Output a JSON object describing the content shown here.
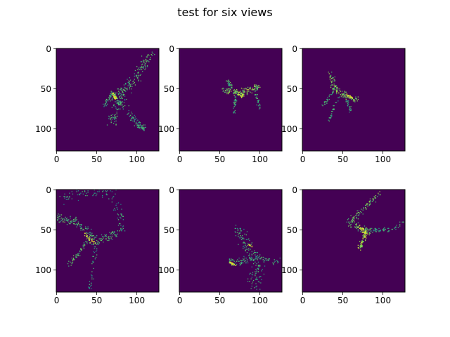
{
  "figure": {
    "title": "test for six views",
    "colormap": {
      "low": "#440154",
      "mid1": "#21918c",
      "mid2": "#5ec962",
      "high": "#fde725"
    }
  },
  "chart_data": [
    {
      "type": "heatmap",
      "view": 1,
      "xlim": [
        0,
        127
      ],
      "ylim": [
        127,
        0
      ],
      "xticks": [
        0,
        50,
        100
      ],
      "yticks": [
        0,
        50,
        100
      ],
      "strokes": [
        {
          "pts": [
            [
              68,
              92
            ],
            [
              80,
              55
            ],
            [
              100,
              35
            ],
            [
              118,
              5
            ]
          ],
          "count": 220,
          "spread": 9,
          "level": 0.55
        },
        {
          "pts": [
            [
              70,
              55
            ],
            [
              80,
              70
            ],
            [
              100,
              95
            ],
            [
              110,
              100
            ]
          ],
          "count": 90,
          "spread": 4,
          "level": 0.5
        },
        {
          "pts": [
            [
              72,
              55
            ],
            [
              60,
              70
            ]
          ],
          "count": 50,
          "spread": 6,
          "level": 0.5
        },
        {
          "pts": [
            [
              70,
              55
            ],
            [
              72,
              60
            ],
            [
              74,
              62
            ]
          ],
          "count": 28,
          "spread": 2,
          "level": 0.95
        },
        {
          "pts": [
            [
              80,
              55
            ],
            [
              95,
              85
            ],
            [
              110,
              100
            ]
          ],
          "count": 40,
          "spread": 5,
          "level": 0.45
        }
      ]
    },
    {
      "type": "heatmap",
      "view": 2,
      "xlim": [
        0,
        127
      ],
      "ylim": [
        127,
        0
      ],
      "xticks": [
        0,
        50,
        100
      ],
      "yticks": [
        0,
        50,
        100
      ],
      "strokes": [
        {
          "pts": [
            [
              55,
              50
            ],
            [
              70,
              55
            ],
            [
              85,
              52
            ],
            [
              100,
              48
            ]
          ],
          "count": 130,
          "spread": 6,
          "level": 0.7
        },
        {
          "pts": [
            [
              60,
              40
            ],
            [
              65,
              50
            ]
          ],
          "count": 30,
          "spread": 3,
          "level": 0.55
        },
        {
          "pts": [
            [
              70,
              58
            ],
            [
              68,
              80
            ]
          ],
          "count": 30,
          "spread": 3,
          "level": 0.5
        },
        {
          "pts": [
            [
              95,
              55
            ],
            [
              100,
              75
            ]
          ],
          "count": 26,
          "spread": 3,
          "level": 0.5
        },
        {
          "pts": [
            [
              72,
              55
            ],
            [
              80,
              58
            ]
          ],
          "count": 40,
          "spread": 4,
          "level": 0.85
        }
      ]
    },
    {
      "type": "heatmap",
      "view": 3,
      "xlim": [
        0,
        127
      ],
      "ylim": [
        127,
        0
      ],
      "xticks": [
        0,
        50,
        100
      ],
      "yticks": [
        0,
        50,
        100
      ],
      "strokes": [
        {
          "pts": [
            [
              35,
              30
            ],
            [
              40,
              50
            ],
            [
              55,
              60
            ],
            [
              68,
              65
            ]
          ],
          "count": 120,
          "spread": 6,
          "level": 0.7
        },
        {
          "pts": [
            [
              40,
              50
            ],
            [
              25,
              70
            ]
          ],
          "count": 28,
          "spread": 3,
          "level": 0.5
        },
        {
          "pts": [
            [
              45,
              60
            ],
            [
              32,
              90
            ]
          ],
          "count": 28,
          "spread": 3,
          "level": 0.5
        },
        {
          "pts": [
            [
              55,
              65
            ],
            [
              60,
              80
            ]
          ],
          "count": 24,
          "spread": 3,
          "level": 0.5
        },
        {
          "pts": [
            [
              55,
              58
            ],
            [
              63,
              62
            ]
          ],
          "count": 30,
          "spread": 3,
          "level": 0.85
        }
      ]
    },
    {
      "type": "heatmap",
      "view": 4,
      "xlim": [
        0,
        127
      ],
      "ylim": [
        127,
        0
      ],
      "xticks": [
        0,
        50,
        100
      ],
      "yticks": [
        0,
        50,
        100
      ],
      "strokes": [
        {
          "pts": [
            [
              0,
              35
            ],
            [
              25,
              40
            ],
            [
              50,
              65
            ],
            [
              80,
              50
            ]
          ],
          "count": 200,
          "spread": 8,
          "level": 0.55
        },
        {
          "pts": [
            [
              45,
              55
            ],
            [
              30,
              75
            ],
            [
              15,
              95
            ]
          ],
          "count": 60,
          "spread": 4,
          "level": 0.6
        },
        {
          "pts": [
            [
              50,
              65
            ],
            [
              45,
              100
            ],
            [
              40,
              125
            ]
          ],
          "count": 40,
          "spread": 5,
          "level": 0.45
        },
        {
          "pts": [
            [
              10,
              10
            ],
            [
              40,
              0
            ],
            [
              70,
              5
            ],
            [
              85,
              50
            ]
          ],
          "count": 120,
          "spread": 10,
          "level": 0.45
        },
        {
          "pts": [
            [
              35,
              55
            ],
            [
              42,
              62
            ],
            [
              48,
              66
            ]
          ],
          "count": 30,
          "spread": 3,
          "level": 0.95
        }
      ]
    },
    {
      "type": "heatmap",
      "view": 5,
      "xlim": [
        0,
        127
      ],
      "ylim": [
        127,
        0
      ],
      "xticks": [
        0,
        50,
        100
      ],
      "yticks": [
        0,
        50,
        100
      ],
      "strokes": [
        {
          "pts": [
            [
              70,
              45
            ],
            [
              85,
              70
            ],
            [
              100,
              95
            ],
            [
              90,
              125
            ]
          ],
          "count": 160,
          "spread": 12,
          "level": 0.5
        },
        {
          "pts": [
            [
              60,
              90
            ],
            [
              75,
              90
            ],
            [
              95,
              85
            ],
            [
              125,
              90
            ]
          ],
          "count": 110,
          "spread": 7,
          "level": 0.5
        },
        {
          "pts": [
            [
              63,
              90
            ],
            [
              70,
              95
            ]
          ],
          "count": 24,
          "spread": 2,
          "level": 0.9
        },
        {
          "pts": [
            [
              85,
              68
            ],
            [
              90,
              70
            ]
          ],
          "count": 12,
          "spread": 2,
          "level": 0.9
        }
      ]
    },
    {
      "type": "heatmap",
      "view": 6,
      "xlim": [
        0,
        127
      ],
      "ylim": [
        127,
        0
      ],
      "xticks": [
        0,
        50,
        100
      ],
      "yticks": [
        0,
        50,
        100
      ],
      "strokes": [
        {
          "pts": [
            [
              95,
              5
            ],
            [
              70,
              30
            ],
            [
              58,
              40
            ],
            [
              75,
              50
            ],
            [
              85,
              52
            ]
          ],
          "count": 170,
          "spread": 6,
          "level": 0.65
        },
        {
          "pts": [
            [
              80,
              52
            ],
            [
              75,
              62
            ],
            [
              70,
              75
            ]
          ],
          "count": 70,
          "spread": 4,
          "level": 0.8
        },
        {
          "pts": [
            [
              85,
              50
            ],
            [
              110,
              50
            ],
            [
              125,
              40
            ]
          ],
          "count": 60,
          "spread": 4,
          "level": 0.45
        },
        {
          "pts": [
            [
              70,
              45
            ],
            [
              78,
              55
            ]
          ],
          "count": 30,
          "spread": 3,
          "level": 0.9
        }
      ]
    }
  ]
}
